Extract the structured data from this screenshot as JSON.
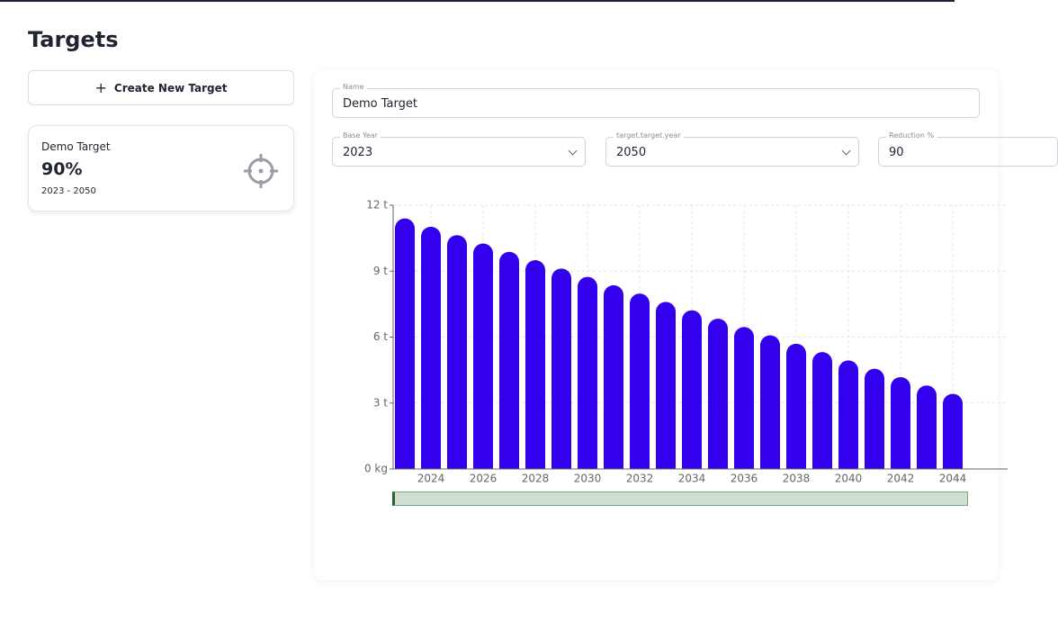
{
  "header": {
    "title": "Targets"
  },
  "create_button": {
    "label": "Create New Target"
  },
  "target_card": {
    "name": "Demo Target",
    "percent": "90%",
    "range": "2023 - 2050"
  },
  "form": {
    "name": {
      "label": "Name",
      "value": "Demo Target"
    },
    "base_year": {
      "label": "Base Year",
      "value": "2023"
    },
    "target_year": {
      "label": "target.target.year",
      "value": "2050"
    },
    "reduction": {
      "label": "Reduction %",
      "value": "90"
    }
  },
  "chart_data": {
    "type": "bar",
    "color": "#3300ee",
    "grid": true,
    "categories": [
      null,
      "2024",
      null,
      "2026",
      null,
      "2028",
      null,
      "2030",
      null,
      "2032",
      null,
      "2034",
      null,
      "2036",
      null,
      "2038",
      null,
      "2040",
      null,
      "2042",
      null,
      "2044"
    ],
    "values": [
      11.4,
      11.02,
      10.64,
      10.26,
      9.88,
      9.5,
      9.12,
      8.74,
      8.36,
      7.98,
      7.6,
      7.22,
      6.84,
      6.46,
      6.08,
      5.7,
      5.32,
      4.94,
      4.56,
      4.18,
      3.8,
      3.42
    ],
    "ylim": [
      0,
      12
    ],
    "yticks": [
      {
        "value": 0,
        "label": "0 kg"
      },
      {
        "value": 3,
        "label": "3 t"
      },
      {
        "value": 6,
        "label": "6 t"
      },
      {
        "value": 9,
        "label": "9 t"
      },
      {
        "value": 12,
        "label": "12 t"
      }
    ]
  }
}
